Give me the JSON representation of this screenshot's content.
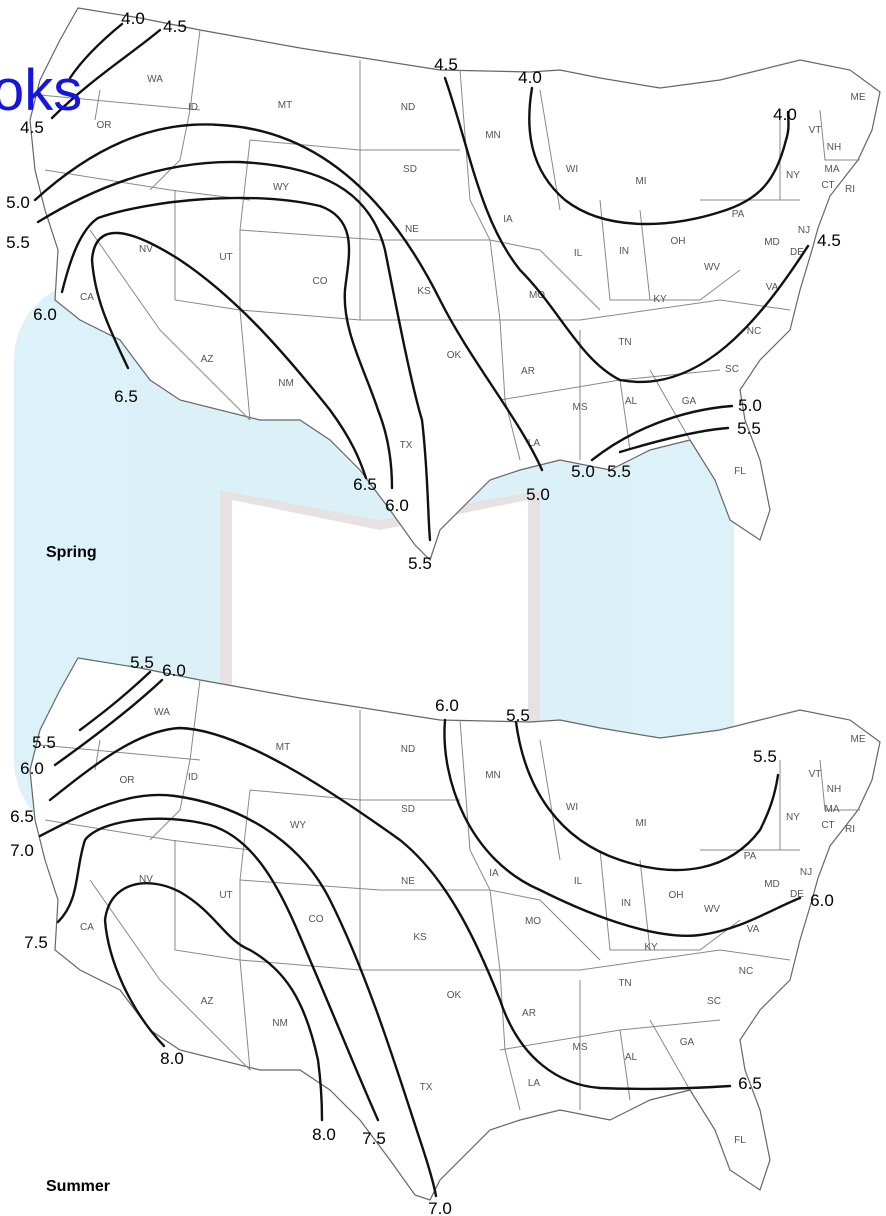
{
  "watermark": {
    "text": "DropBooks",
    "corner_fragment": "oks"
  },
  "maps": [
    {
      "season": "Spring",
      "states": [
        "WA",
        "OR",
        "ID",
        "MT",
        "ND",
        "MN",
        "WI",
        "MI",
        "ME",
        "VT",
        "NH",
        "MA",
        "CT",
        "RI",
        "NY",
        "PA",
        "NJ",
        "DE",
        "MD",
        "WV",
        "VA",
        "NC",
        "SC",
        "GA",
        "FL",
        "AL",
        "MS",
        "TN",
        "KY",
        "OH",
        "IN",
        "IL",
        "IA",
        "SD",
        "NE",
        "WY",
        "UT",
        "NV",
        "CA",
        "CO",
        "KS",
        "MO",
        "AR",
        "OK",
        "TX",
        "LA",
        "AZ",
        "NM"
      ],
      "isopleth_labels": [
        "4.0",
        "4.5",
        "4.5",
        "5.0",
        "5.5",
        "6.0",
        "6.5",
        "6.5",
        "6.0",
        "5.5",
        "5.0",
        "4.5",
        "4.0",
        "4.0",
        "4.5",
        "5.0",
        "5.5",
        "5.0",
        "5.5"
      ]
    },
    {
      "season": "Summer",
      "states": [
        "WA",
        "OR",
        "ID",
        "MT",
        "ND",
        "MN",
        "WI",
        "MI",
        "ME",
        "VT",
        "NH",
        "MA",
        "CT",
        "RI",
        "NY",
        "PA",
        "NJ",
        "DE",
        "MD",
        "WV",
        "VA",
        "NC",
        "SC",
        "GA",
        "FL",
        "AL",
        "MS",
        "TN",
        "KY",
        "OH",
        "IN",
        "IL",
        "IA",
        "SD",
        "NE",
        "WY",
        "UT",
        "NV",
        "CA",
        "CO",
        "KS",
        "MO",
        "AR",
        "OK",
        "TX",
        "LA",
        "AZ",
        "NM"
      ],
      "isopleth_labels": [
        "5.5",
        "6.0",
        "5.5",
        "6.0",
        "6.5",
        "7.0",
        "7.5",
        "8.0",
        "8.0",
        "7.5",
        "7.0",
        "6.0",
        "5.5",
        "5.5",
        "6.0",
        "6.5"
      ]
    }
  ]
}
